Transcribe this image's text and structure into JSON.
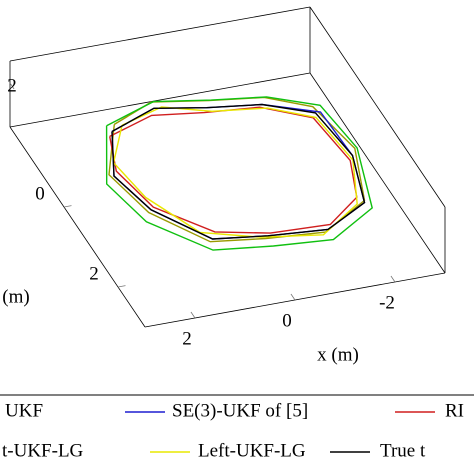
{
  "chart_data": {
    "type": "line3d",
    "xlabel": "x (m)",
    "ylabel": "y (m)",
    "xlim": [
      -3,
      3
    ],
    "ylim": [
      -2,
      3
    ],
    "zlim": [
      0,
      3
    ],
    "xticks": [
      -2,
      0,
      2
    ],
    "yticks": [
      0,
      2
    ],
    "zticks": [
      2
    ],
    "series": [
      {
        "name": "UKF",
        "color": "#9a9a00",
        "x": [
          1.4,
          0.5,
          -0.6,
          -1.6,
          -2.3,
          -2.6,
          -2.2,
          -1.1,
          0.1,
          1.1,
          1.9,
          2.1,
          1.4
        ],
        "y": [
          -1.1,
          -1.4,
          -1.3,
          -1.1,
          -0.6,
          0.4,
          1.5,
          2.1,
          2.1,
          1.9,
          1.1,
          0.0,
          -1.1
        ],
        "z": [
          1.1,
          1.2,
          1.0,
          1.1,
          1.3,
          1.1,
          0.9,
          1.0,
          1.2,
          1.1,
          1.3,
          1.1,
          1.1
        ]
      },
      {
        "name": "SE(3)-UKF of [5]",
        "color": "#1f1fd0",
        "x": [
          1.5,
          0.5,
          -0.5,
          -1.5,
          -2.4,
          -2.5,
          -2.2,
          -1.2,
          0.0,
          1.0,
          1.8,
          2.0,
          1.5
        ],
        "y": [
          -1.0,
          -1.3,
          -1.2,
          -1.0,
          -0.5,
          0.5,
          1.5,
          2.0,
          2.0,
          1.8,
          1.0,
          0.0,
          -1.0
        ],
        "z": [
          1.0,
          1.1,
          0.9,
          1.0,
          1.2,
          1.0,
          0.8,
          0.9,
          1.1,
          1.0,
          1.2,
          1.0,
          1.0
        ]
      },
      {
        "name": "RI",
        "color": "#d01f1f",
        "x": [
          1.6,
          0.6,
          -0.4,
          -1.4,
          -2.2,
          -2.4,
          -2.1,
          -1.3,
          -0.1,
          0.9,
          1.7,
          1.9,
          1.6
        ],
        "y": [
          -0.9,
          -1.2,
          -1.1,
          -0.9,
          -0.4,
          0.6,
          1.4,
          1.9,
          1.9,
          1.7,
          0.9,
          -0.1,
          -0.9
        ],
        "z": [
          1.0,
          1.0,
          0.9,
          1.1,
          1.2,
          1.0,
          0.9,
          0.9,
          1.0,
          1.1,
          1.1,
          1.0,
          1.0
        ]
      },
      {
        "name": "t-UKF-LG",
        "color": "#10c010",
        "x": [
          1.5,
          0.4,
          -0.7,
          -1.7,
          -2.5,
          -2.7,
          -2.3,
          -1.2,
          0.0,
          1.1,
          2.0,
          2.2,
          1.5
        ],
        "y": [
          -1.2,
          -1.5,
          -1.4,
          -1.2,
          -0.7,
          0.3,
          1.6,
          2.2,
          2.2,
          2.0,
          1.2,
          0.1,
          -1.2
        ],
        "z": [
          0.9,
          1.0,
          0.8,
          0.9,
          1.1,
          0.9,
          0.7,
          0.8,
          1.0,
          0.9,
          1.1,
          0.9,
          0.9
        ]
      },
      {
        "name": "Left-UKF-LG",
        "color": "#e8e800",
        "x": [
          1.3,
          0.4,
          -0.5,
          -1.5,
          -2.2,
          -2.4,
          -2.0,
          -1.0,
          0.2,
          1.2,
          1.8,
          1.9,
          1.3
        ],
        "y": [
          -1.0,
          -1.2,
          -1.0,
          -0.8,
          -0.3,
          0.7,
          1.6,
          2.2,
          2.1,
          1.7,
          0.8,
          -0.2,
          -1.0
        ],
        "z": [
          1.2,
          1.3,
          1.1,
          1.2,
          1.4,
          1.2,
          1.0,
          1.1,
          1.3,
          1.2,
          1.4,
          1.2,
          1.2
        ]
      },
      {
        "name": "True t",
        "color": "#000000",
        "x": [
          1.5,
          0.5,
          -0.5,
          -1.5,
          -2.3,
          -2.5,
          -2.2,
          -1.2,
          0.0,
          1.0,
          1.8,
          2.0,
          1.5
        ],
        "y": [
          -1.0,
          -1.3,
          -1.2,
          -1.0,
          -0.5,
          0.5,
          1.5,
          2.0,
          2.0,
          1.8,
          1.0,
          0.0,
          -1.0
        ],
        "z": [
          1.0,
          1.1,
          0.9,
          1.0,
          1.2,
          1.0,
          0.8,
          0.9,
          1.1,
          1.0,
          1.2,
          1.0,
          1.0
        ]
      }
    ]
  }
}
